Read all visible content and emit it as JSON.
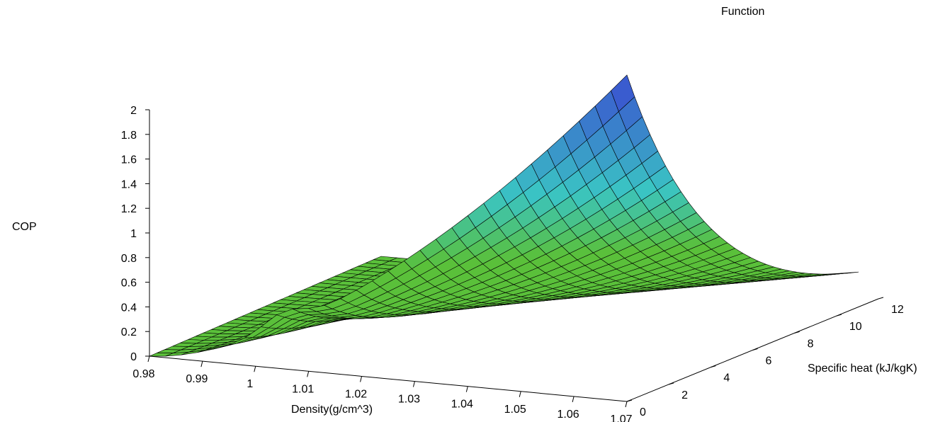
{
  "chart_data": {
    "type": "surface3d",
    "title": "Function",
    "xlabel": "Density(g/cm^3)",
    "ylabel": "Specific heat (kJ/kgK)",
    "zlabel": "COP",
    "x_ticks": [
      "0.98",
      "0.99",
      "1",
      "1.01",
      "1.02",
      "1.03",
      "1.04",
      "1.05",
      "1.06",
      "1.07"
    ],
    "y_ticks": [
      "0",
      "2",
      "4",
      "6",
      "8",
      "10",
      "12"
    ],
    "z_ticks": [
      "0",
      "0.2",
      "0.4",
      "0.6",
      "0.8",
      "1",
      "1.2",
      "1.4",
      "1.6",
      "1.8",
      "2"
    ],
    "xlim": [
      0.98,
      1.07
    ],
    "ylim": [
      0,
      12
    ],
    "zlim": [
      0,
      2
    ],
    "surface_description": "COP surface peaking near (x=1.07, y=0) at about 2.6, decaying with increasing specific heat and decreasing density, near zero elsewhere",
    "peak": {
      "x": 1.07,
      "y": 0,
      "z": 2.6
    },
    "colors": {
      "low": "#5ac03a",
      "mid": "#3ac4c4",
      "high": "#3a4fd0",
      "mesh": "#000000"
    }
  }
}
